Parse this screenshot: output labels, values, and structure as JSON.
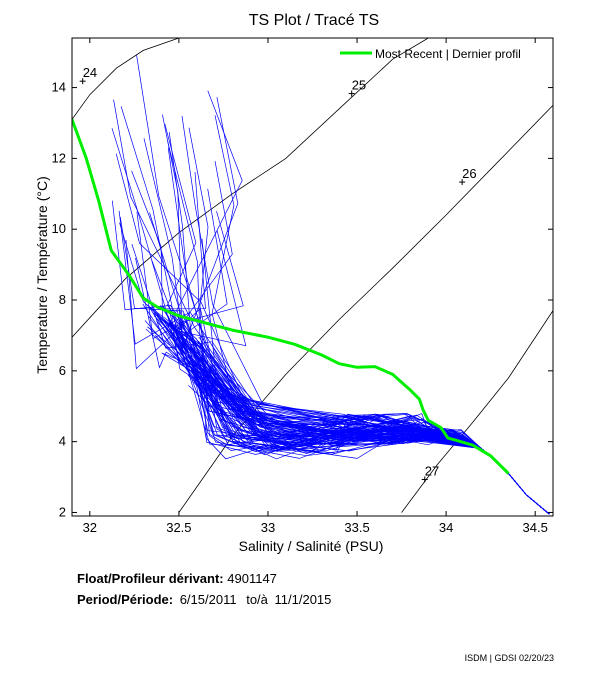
{
  "chart_data": {
    "type": "line",
    "title": "TS Plot / Tracé TS",
    "xlabel": "Salinity / Salinité (PSU)",
    "ylabel": "Temperature / Température (°C)",
    "xlim": [
      31.9,
      34.6
    ],
    "ylim": [
      1.9,
      15.4
    ],
    "xticks": [
      32,
      32.5,
      33,
      33.5,
      34,
      34.5
    ],
    "xtick_labels": [
      "32",
      "32.5",
      "33",
      "33.5",
      "34",
      "34.5"
    ],
    "yticks": [
      2,
      4,
      6,
      8,
      10,
      12,
      14
    ],
    "ytick_labels": [
      "2",
      "4",
      "6",
      "8",
      "10",
      "12",
      "14"
    ],
    "grid": false,
    "legend_position": "top-right",
    "density_isolines": [
      {
        "label": "24",
        "label_at": [
          31.96,
          14.35
        ],
        "points": [
          [
            31.9,
            13.1
          ],
          [
            32.0,
            13.8
          ],
          [
            32.15,
            14.55
          ],
          [
            32.3,
            15.05
          ],
          [
            32.5,
            15.4
          ]
        ]
      },
      {
        "label": "25",
        "label_at": [
          33.47,
          14.0
        ],
        "points": [
          [
            31.9,
            6.95
          ],
          [
            32.2,
            8.6
          ],
          [
            32.5,
            9.9
          ],
          [
            32.8,
            11.0
          ],
          [
            33.1,
            12.0
          ],
          [
            33.4,
            13.4
          ],
          [
            33.7,
            14.8
          ],
          [
            33.9,
            15.4
          ]
        ]
      },
      {
        "label": "26",
        "label_at": [
          34.09,
          11.5
        ],
        "points": [
          [
            32.5,
            2.0
          ],
          [
            32.8,
            4.15
          ],
          [
            33.1,
            5.9
          ],
          [
            33.4,
            7.45
          ],
          [
            33.7,
            8.9
          ],
          [
            34.0,
            10.4
          ],
          [
            34.3,
            11.95
          ],
          [
            34.6,
            13.5
          ]
        ]
      },
      {
        "label": "27",
        "label_at": [
          33.88,
          3.1
        ],
        "points": [
          [
            33.75,
            2.0
          ],
          [
            33.95,
            3.35
          ],
          [
            34.15,
            4.55
          ],
          [
            34.35,
            5.8
          ],
          [
            34.6,
            7.7
          ]
        ]
      }
    ],
    "series": [
      {
        "name": "Most Recent | Dernier profil",
        "color": "#00ee00",
        "points": [
          [
            31.9,
            13.1
          ],
          [
            31.98,
            12.0
          ],
          [
            32.05,
            10.8
          ],
          [
            32.12,
            9.4
          ],
          [
            32.22,
            8.7
          ],
          [
            32.3,
            8.05
          ],
          [
            32.38,
            7.8
          ],
          [
            32.5,
            7.55
          ],
          [
            32.65,
            7.35
          ],
          [
            32.8,
            7.15
          ],
          [
            33.0,
            6.95
          ],
          [
            33.15,
            6.75
          ],
          [
            33.3,
            6.45
          ],
          [
            33.4,
            6.2
          ],
          [
            33.5,
            6.1
          ],
          [
            33.6,
            6.12
          ],
          [
            33.7,
            5.9
          ],
          [
            33.8,
            5.45
          ],
          [
            33.85,
            5.2
          ],
          [
            33.87,
            4.9
          ],
          [
            33.9,
            4.6
          ],
          [
            33.97,
            4.4
          ],
          [
            34.01,
            4.1
          ],
          [
            34.05,
            4.05
          ],
          [
            34.15,
            3.9
          ],
          [
            34.25,
            3.6
          ],
          [
            34.35,
            3.1
          ]
        ]
      }
    ],
    "profile_bundle": {
      "count": 110,
      "color": "#0000ff",
      "deep_tail": [
        [
          34.2,
          3.8
        ],
        [
          34.35,
          3.1
        ],
        [
          34.45,
          2.5
        ],
        [
          34.58,
          1.95
        ]
      ]
    }
  },
  "info": {
    "float_label": "Float/Profileur dérivant:",
    "float_id": "4901147",
    "period_label": "Period/Période:",
    "period_start": "6/15/2011",
    "period_sep": "to/à",
    "period_end": "11/1/2015"
  },
  "credit": "ISDM | GDSI 02/20/23"
}
